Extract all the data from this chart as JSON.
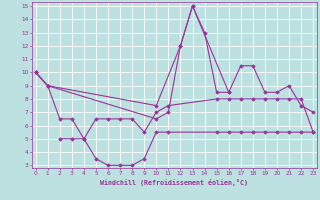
{
  "bg_color": "#bde0e0",
  "line_color": "#993399",
  "grid_color": "#ffffff",
  "xlabel": "Windchill (Refroidissement éolien,°C)",
  "xlabel_color": "#993399",
  "tick_color": "#993399",
  "yticks": [
    3,
    4,
    5,
    6,
    7,
    8,
    9,
    10,
    11,
    12,
    13,
    14,
    15
  ],
  "xticks": [
    0,
    1,
    2,
    3,
    4,
    5,
    6,
    7,
    8,
    9,
    10,
    11,
    12,
    13,
    14,
    15,
    16,
    17,
    18,
    19,
    20,
    21,
    22,
    23
  ],
  "ylim": [
    2.8,
    15.3
  ],
  "xlim": [
    -0.3,
    23.3
  ],
  "lines": [
    {
      "x": [
        0,
        1,
        10,
        12,
        13,
        16
      ],
      "y": [
        10,
        9,
        7.5,
        12,
        15,
        8.5
      ]
    },
    {
      "x": [
        0,
        1,
        10,
        11,
        12,
        13,
        14,
        15,
        16,
        17,
        18,
        19,
        20,
        21,
        22,
        23
      ],
      "y": [
        10,
        9,
        6.5,
        7,
        12,
        15,
        13,
        8.5,
        8.5,
        10.5,
        10.5,
        8.5,
        8.5,
        9,
        7.5,
        7
      ]
    },
    {
      "x": [
        0,
        1,
        2,
        3,
        4,
        5,
        6,
        7,
        8,
        9,
        10,
        11,
        15,
        16,
        17,
        18,
        19,
        20,
        21,
        22,
        23
      ],
      "y": [
        10,
        9,
        6.5,
        6.5,
        5,
        6.5,
        6.5,
        6.5,
        6.5,
        5.5,
        7,
        7.5,
        8,
        8,
        8,
        8,
        8,
        8,
        8,
        8,
        5.5
      ]
    },
    {
      "x": [
        2,
        3,
        4,
        5,
        6,
        7,
        8,
        9,
        10,
        11,
        15,
        16,
        17,
        18,
        19,
        20,
        21,
        22,
        23
      ],
      "y": [
        5,
        5,
        5,
        3.5,
        3,
        3,
        3,
        3.5,
        5.5,
        5.5,
        5.5,
        5.5,
        5.5,
        5.5,
        5.5,
        5.5,
        5.5,
        5.5,
        5.5
      ]
    }
  ],
  "marker": "D",
  "markersize": 1.8,
  "linewidth": 0.8
}
